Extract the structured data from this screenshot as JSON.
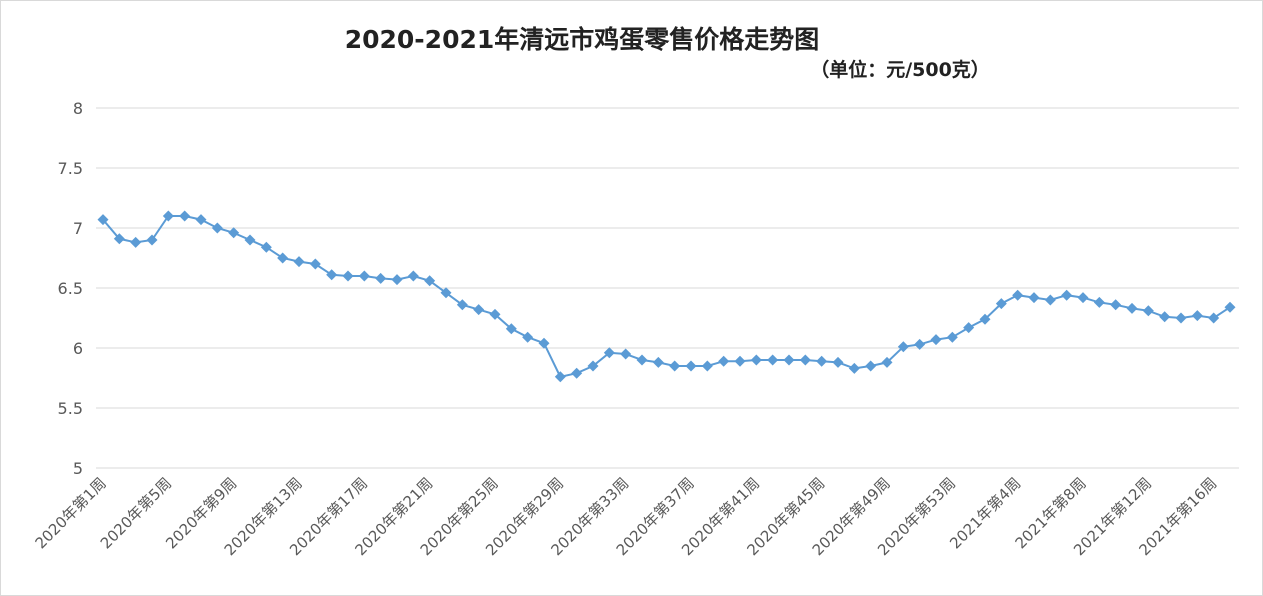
{
  "chart_data": {
    "type": "line",
    "title": "2020-2021年清远市鸡蛋零售价格走势图",
    "subtitle": "（单位：元/500克）",
    "xlabel": "",
    "ylabel": "",
    "ylim": [
      5,
      8
    ],
    "yticks": [
      5,
      5.5,
      6,
      6.5,
      7,
      7.5,
      8
    ],
    "grid": true,
    "legend": "none",
    "series_color": "#5b9bd5",
    "categories": [
      "2020年第1周",
      "2020年第2周",
      "2020年第3周",
      "2020年第4周",
      "2020年第5周",
      "2020年第6周",
      "2020年第7周",
      "2020年第8周",
      "2020年第9周",
      "2020年第10周",
      "2020年第11周",
      "2020年第12周",
      "2020年第13周",
      "2020年第14周",
      "2020年第15周",
      "2020年第16周",
      "2020年第17周",
      "2020年第18周",
      "2020年第19周",
      "2020年第20周",
      "2020年第21周",
      "2020年第22周",
      "2020年第23周",
      "2020年第24周",
      "2020年第25周",
      "2020年第26周",
      "2020年第27周",
      "2020年第28周",
      "2020年第29周",
      "2020年第30周",
      "2020年第31周",
      "2020年第32周",
      "2020年第33周",
      "2020年第34周",
      "2020年第35周",
      "2020年第36周",
      "2020年第37周",
      "2020年第38周",
      "2020年第39周",
      "2020年第40周",
      "2020年第41周",
      "2020年第42周",
      "2020年第43周",
      "2020年第44周",
      "2020年第45周",
      "2020年第46周",
      "2020年第47周",
      "2020年第48周",
      "2020年第49周",
      "2020年第50周",
      "2020年第51周",
      "2020年第52周",
      "2020年第53周",
      "2021年第1周",
      "2021年第2周",
      "2021年第3周",
      "2021年第4周",
      "2021年第5周",
      "2021年第6周",
      "2021年第7周",
      "2021年第8周",
      "2021年第9周",
      "2021年第10周",
      "2021年第11周",
      "2021年第12周",
      "2021年第13周",
      "2021年第14周",
      "2021年第15周",
      "2021年第16周",
      "2021年第17周"
    ],
    "visible_tick_labels": [
      "2020年第1周",
      "2020年第5周",
      "2020年第9周",
      "2020年第13周",
      "2020年第17周",
      "2020年第21周",
      "2020年第25周",
      "2020年第29周",
      "2020年第33周",
      "2020年第37周",
      "2020年第41周",
      "2020年第45周",
      "2020年第49周",
      "2020年第53周",
      "2021年第4周",
      "2021年第8周",
      "2021年第12周",
      "2021年第16周"
    ],
    "values": [
      7.07,
      6.91,
      6.88,
      6.9,
      7.1,
      7.1,
      7.07,
      7.0,
      6.96,
      6.9,
      6.84,
      6.75,
      6.72,
      6.7,
      6.61,
      6.6,
      6.6,
      6.58,
      6.57,
      6.6,
      6.56,
      6.46,
      6.36,
      6.32,
      6.28,
      6.16,
      6.09,
      6.04,
      5.76,
      5.79,
      5.85,
      5.96,
      5.95,
      5.9,
      5.88,
      5.85,
      5.85,
      5.85,
      5.89,
      5.89,
      5.9,
      5.9,
      5.9,
      5.9,
      5.89,
      5.88,
      5.83,
      5.85,
      5.88,
      6.01,
      6.03,
      6.07,
      6.09,
      6.17,
      6.24,
      6.37,
      6.44,
      6.42,
      6.4,
      6.44,
      6.42,
      6.38,
      6.36,
      6.33,
      6.31,
      6.26,
      6.25,
      6.27,
      6.25,
      6.34
    ]
  }
}
